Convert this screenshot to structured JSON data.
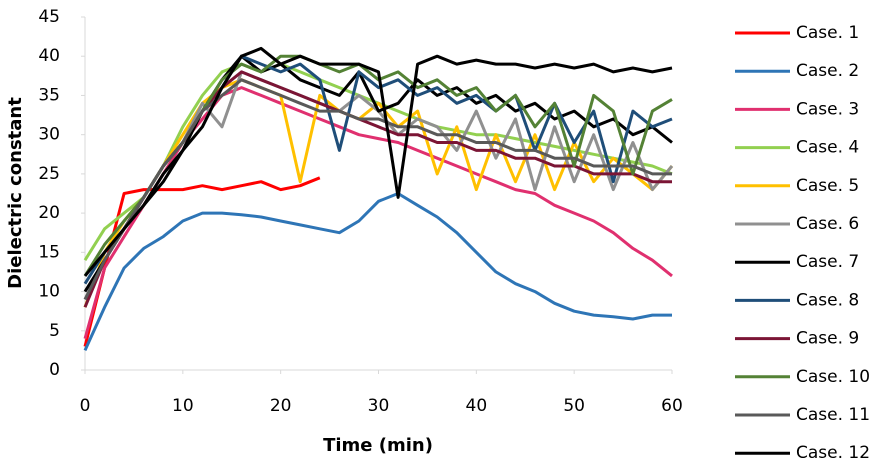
{
  "chart_data": {
    "type": "line",
    "x_label": "Time (min)",
    "y_label": "Dielectric constant",
    "xlim": [
      0,
      60
    ],
    "xticks": [
      0,
      10,
      20,
      30,
      40,
      50,
      60
    ],
    "ylim": [
      0,
      45
    ],
    "yticks": [
      0,
      5,
      10,
      15,
      20,
      25,
      30,
      35,
      40,
      45
    ],
    "grid": false,
    "legend": "right",
    "x": [
      0,
      2,
      4,
      6,
      8,
      10,
      12,
      14,
      16,
      18,
      20,
      22,
      24,
      26,
      28,
      30,
      32,
      34,
      36,
      38,
      40,
      42,
      44,
      46,
      48,
      50,
      52,
      54,
      56,
      58,
      60
    ],
    "series": [
      {
        "name": "Case. 1",
        "color": "#ff0000",
        "values": [
          3,
          13,
          22.5,
          23,
          23,
          23,
          23.5,
          23,
          23.5,
          24,
          23,
          23.5,
          24.5,
          null,
          null,
          null,
          null,
          null,
          null,
          null,
          null,
          null,
          null,
          null,
          null,
          null,
          null,
          null,
          null,
          null,
          null
        ]
      },
      {
        "name": "Case. 2",
        "color": "#2e75b6",
        "values": [
          2.5,
          8,
          13,
          15.5,
          17,
          19,
          20,
          20,
          19.8,
          19.5,
          19,
          18.5,
          18,
          17.5,
          19,
          21.5,
          22.5,
          21,
          19.5,
          17.5,
          15,
          12.5,
          11,
          10,
          8.5,
          7.5,
          7,
          6.8,
          6.5,
          7,
          7
        ]
      },
      {
        "name": "Case. 3",
        "color": "#e0306f",
        "values": [
          4,
          13,
          17,
          21,
          25,
          29,
          32,
          35,
          36,
          35,
          34,
          33,
          32,
          31,
          30,
          29.5,
          29,
          28,
          27,
          26,
          25,
          24,
          23,
          22.5,
          21,
          20,
          19,
          17.5,
          15.5,
          14,
          12
        ]
      },
      {
        "name": "Case. 4",
        "color": "#92d050",
        "values": [
          14,
          18,
          20,
          22,
          26,
          31,
          35,
          38,
          39,
          38,
          39,
          38,
          37,
          36,
          35,
          34,
          33,
          32,
          31,
          30.5,
          30,
          30,
          29.5,
          29,
          28.5,
          28,
          27.5,
          27,
          26.5,
          26,
          25
        ]
      },
      {
        "name": "Case. 5",
        "color": "#ffc000",
        "values": [
          8,
          15,
          19,
          22,
          26,
          30,
          34,
          36,
          37,
          36,
          35,
          24,
          35,
          33,
          32,
          34,
          31,
          33,
          25,
          31,
          23,
          30,
          24,
          30,
          23,
          29,
          24,
          27,
          25,
          23,
          26
        ]
      },
      {
        "name": "Case. 6",
        "color": "#909090",
        "values": [
          9,
          14,
          18,
          22,
          26,
          29,
          34,
          31,
          38,
          37,
          36,
          35,
          34,
          33,
          35,
          33,
          30,
          32,
          31,
          28,
          33,
          27,
          32,
          23,
          31,
          24,
          30,
          23,
          29,
          23,
          26
        ]
      },
      {
        "name": "Case. 7",
        "color": "#000000",
        "values": [
          10,
          14,
          18,
          21,
          25,
          28,
          33,
          37,
          40,
          38,
          39,
          37,
          36,
          35,
          38,
          33,
          34,
          37,
          35,
          36,
          34,
          35,
          33,
          34,
          32,
          33,
          31,
          32,
          30,
          31,
          29
        ]
      },
      {
        "name": "Case. 8",
        "color": "#1f4e79",
        "values": [
          11,
          15,
          18,
          22,
          26,
          29,
          33,
          36,
          40,
          39,
          38,
          39,
          37,
          28,
          38,
          36,
          37,
          35,
          36,
          34,
          35,
          33,
          35,
          28,
          34,
          29,
          33,
          24,
          33,
          31,
          32
        ]
      },
      {
        "name": "Case. 9",
        "color": "#7b1535",
        "values": [
          8,
          14,
          18,
          22,
          26,
          29,
          33,
          36,
          38,
          37,
          36,
          35,
          34,
          33,
          32,
          31,
          30,
          30,
          29,
          29,
          28,
          28,
          27,
          27,
          26,
          26,
          25,
          25,
          25,
          24,
          24
        ]
      },
      {
        "name": "Case. 10",
        "color": "#548235",
        "values": [
          12,
          16,
          19,
          22,
          26,
          29,
          33,
          37,
          39,
          38,
          40,
          40,
          39,
          38,
          39,
          37,
          38,
          36,
          37,
          35,
          36,
          33,
          35,
          31,
          34,
          26,
          35,
          33,
          25,
          33,
          34.5
        ]
      },
      {
        "name": "Case. 11",
        "color": "#595959",
        "values": [
          9,
          14,
          18,
          22,
          26,
          29,
          33,
          35,
          37,
          36,
          35,
          34,
          33,
          33,
          32,
          32,
          31,
          31,
          30,
          30,
          29,
          29,
          28,
          28,
          27,
          27,
          26,
          26,
          26,
          25,
          25
        ]
      },
      {
        "name": "Case. 12",
        "color": "#000000",
        "values": [
          12,
          15,
          18,
          21,
          24,
          28,
          31,
          36,
          40,
          41,
          39,
          40,
          39,
          39,
          39,
          38,
          22,
          39,
          40,
          39,
          39.5,
          39,
          39,
          38.5,
          39,
          38.5,
          39,
          38,
          38.5,
          38,
          38.5
        ]
      }
    ]
  }
}
